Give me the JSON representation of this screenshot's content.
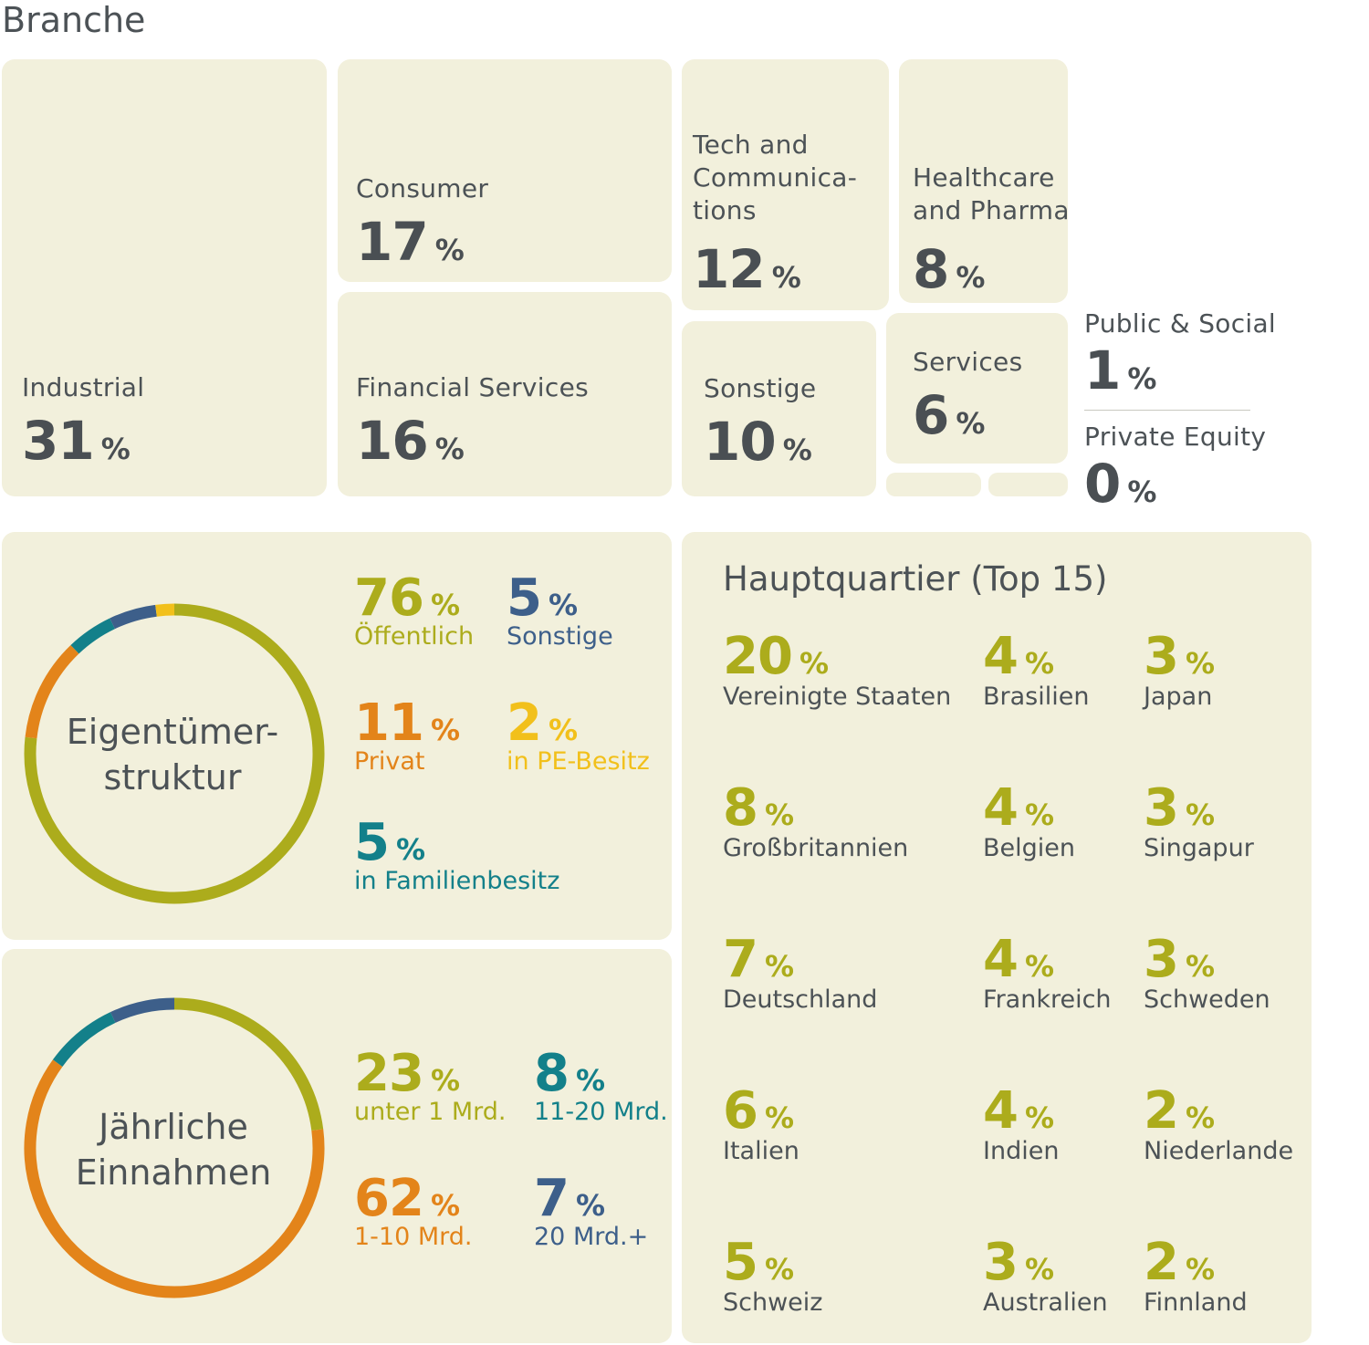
{
  "branche": {
    "title": "Branche",
    "tiles": [
      {
        "label": "Industrial",
        "value": "31",
        "unit": "%"
      },
      {
        "label": "Consumer",
        "value": "17",
        "unit": "%"
      },
      {
        "label": "Financial Services",
        "value": "16",
        "unit": "%"
      },
      {
        "label": "Tech and Communica-tions",
        "value": "12",
        "unit": "%"
      },
      {
        "label": "Healthcare and Pharma",
        "value": "8",
        "unit": "%"
      },
      {
        "label": "Sonstige",
        "value": "10",
        "unit": "%"
      },
      {
        "label": "Services",
        "value": "6",
        "unit": "%"
      },
      {
        "label": "Public & Social",
        "value": "1",
        "unit": "%"
      },
      {
        "label": "Private Equity",
        "value": "0",
        "unit": "%"
      }
    ]
  },
  "eigentuemer": {
    "title_line1": "Eigentümer-",
    "title_line2": "struktur",
    "items": [
      {
        "value": "76",
        "unit": "%",
        "label": "Öffentlich",
        "color": "#acac1c"
      },
      {
        "value": "5",
        "unit": "%",
        "label": "Sonstige",
        "color": "#3d5f8a"
      },
      {
        "value": "11",
        "unit": "%",
        "label": "Privat",
        "color": "#e3841a"
      },
      {
        "value": "2",
        "unit": "%",
        "label": "in PE-Besitz",
        "color": "#f2c01b"
      },
      {
        "value": "5",
        "unit": "%",
        "label": "in Familienbesitz",
        "color": "#13808a"
      }
    ]
  },
  "einnahmen": {
    "title_line1": "Jährliche",
    "title_line2": "Einnahmen",
    "items": [
      {
        "value": "23",
        "unit": "%",
        "label": "unter 1 Mrd.",
        "color": "#acac1c"
      },
      {
        "value": "8",
        "unit": "%",
        "label": "11-20 Mrd.",
        "color": "#13808a"
      },
      {
        "value": "62",
        "unit": "%",
        "label": "1-10 Mrd.",
        "color": "#e3841a"
      },
      {
        "value": "7",
        "unit": "%",
        "label": "20 Mrd.+",
        "color": "#3d5f8a"
      }
    ]
  },
  "hauptquartier": {
    "title": "Hauptquartier (Top 15)",
    "items": [
      {
        "value": "20",
        "unit": "%",
        "label": "Vereinigte Staaten"
      },
      {
        "value": "4",
        "unit": "%",
        "label": "Brasilien"
      },
      {
        "value": "3",
        "unit": "%",
        "label": "Japan"
      },
      {
        "value": "8",
        "unit": "%",
        "label": "Großbritannien"
      },
      {
        "value": "4",
        "unit": "%",
        "label": "Belgien"
      },
      {
        "value": "3",
        "unit": "%",
        "label": "Singapur"
      },
      {
        "value": "7",
        "unit": "%",
        "label": "Deutschland"
      },
      {
        "value": "4",
        "unit": "%",
        "label": "Frankreich"
      },
      {
        "value": "3",
        "unit": "%",
        "label": "Schweden"
      },
      {
        "value": "6",
        "unit": "%",
        "label": "Italien"
      },
      {
        "value": "4",
        "unit": "%",
        "label": "Indien"
      },
      {
        "value": "2",
        "unit": "%",
        "label": "Niederlande"
      },
      {
        "value": "5",
        "unit": "%",
        "label": "Schweiz"
      },
      {
        "value": "3",
        "unit": "%",
        "label": "Australien"
      },
      {
        "value": "2",
        "unit": "%",
        "label": "Finnland"
      }
    ]
  },
  "chart_data": [
    {
      "type": "treemap",
      "title": "Branche",
      "categories": [
        "Industrial",
        "Consumer",
        "Financial Services",
        "Tech and Communica-tions",
        "Healthcare and Pharma",
        "Sonstige",
        "Services",
        "Public & Social",
        "Private Equity"
      ],
      "values": [
        31,
        17,
        16,
        12,
        8,
        10,
        6,
        1,
        0
      ]
    },
    {
      "type": "pie",
      "title": "Eigentümer-struktur",
      "categories": [
        "Öffentlich",
        "Privat",
        "in Familienbesitz",
        "Sonstige",
        "in PE-Besitz"
      ],
      "values": [
        76,
        11,
        5,
        5,
        2
      ],
      "colors": [
        "#acac1c",
        "#e3841a",
        "#13808a",
        "#3d5f8a",
        "#f2c01b"
      ]
    },
    {
      "type": "pie",
      "title": "Jährliche Einnahmen",
      "categories": [
        "unter 1 Mrd.",
        "1-10 Mrd.",
        "11-20 Mrd.",
        "20 Mrd.+"
      ],
      "values": [
        23,
        62,
        8,
        7
      ],
      "colors": [
        "#acac1c",
        "#e3841a",
        "#13808a",
        "#3d5f8a"
      ]
    },
    {
      "type": "table",
      "title": "Hauptquartier (Top 15)",
      "categories": [
        "Vereinigte Staaten",
        "Großbritannien",
        "Deutschland",
        "Italien",
        "Schweiz",
        "Brasilien",
        "Belgien",
        "Frankreich",
        "Indien",
        "Australien",
        "Japan",
        "Singapur",
        "Schweden",
        "Niederlande",
        "Finnland"
      ],
      "values": [
        20,
        8,
        7,
        6,
        5,
        4,
        4,
        4,
        4,
        3,
        3,
        3,
        3,
        2,
        2
      ]
    }
  ]
}
